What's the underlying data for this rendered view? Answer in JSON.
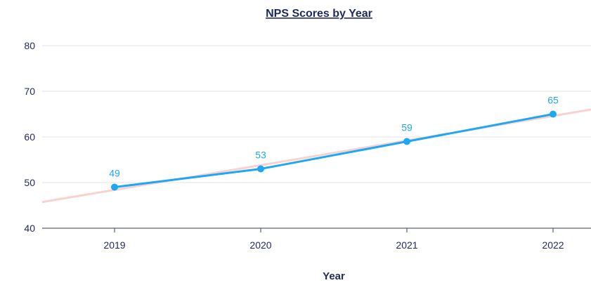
{
  "chart_data": {
    "type": "line",
    "title": "NPS Scores by Year",
    "xlabel": "Year",
    "ylabel": "",
    "categories": [
      "2019",
      "2020",
      "2021",
      "2022"
    ],
    "series": [
      {
        "values": [
          49,
          53,
          59,
          65
        ],
        "data_labels": [
          "49",
          "53",
          "59",
          "65"
        ],
        "color": "#1ea7f2"
      }
    ],
    "trendline": {
      "type": "linear",
      "color": "#f8d2cf"
    },
    "ylim": [
      40,
      80
    ],
    "y_ticks": [
      "40",
      "50",
      "60",
      "70",
      "80"
    ],
    "grid": true,
    "legend": "none"
  },
  "colors": {
    "text": "#1f2a5a",
    "grid": "#e3e3e3",
    "axis": "#5a5f73"
  }
}
